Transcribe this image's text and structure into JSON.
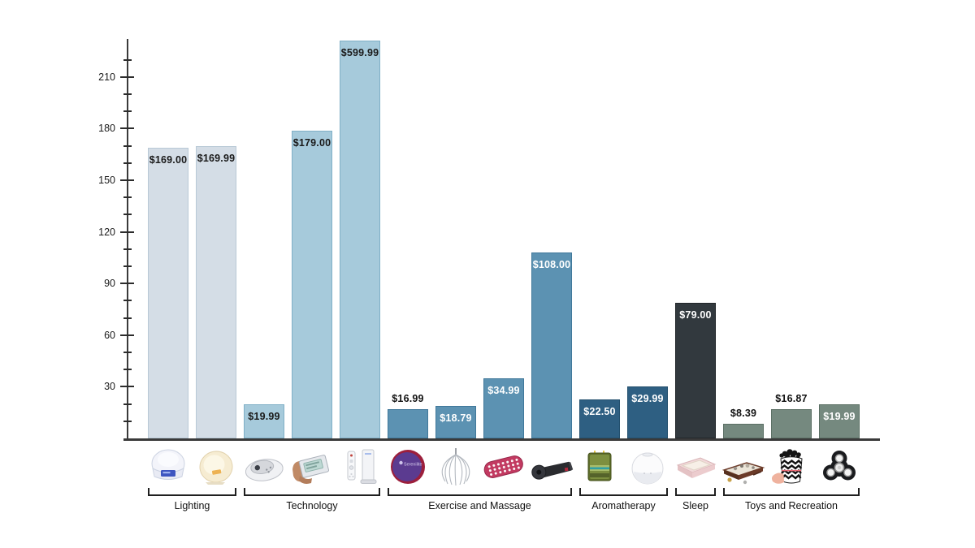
{
  "chart_data": {
    "type": "bar",
    "title": "",
    "xlabel": "",
    "ylabel": "",
    "ylim": [
      0,
      232
    ],
    "grid": false,
    "legend": "none",
    "yticks_major": [
      30,
      60,
      90,
      120,
      150,
      180,
      210
    ],
    "ytick_minor_step": 10,
    "note": "Tallest bar ($599.99) is clipped at the top of the plot area",
    "groups": [
      {
        "label": "Lighting",
        "bar_color": "#d4dde6",
        "bar_edge_color": "#b9c9d6",
        "bars": [
          {
            "value": 169.0,
            "label": "$169.00",
            "label_position": "inside",
            "label_color": "#1a1a1a",
            "icon": "wake-up-light"
          },
          {
            "value": 169.99,
            "label": "$169.99",
            "label_position": "inside",
            "label_color": "#1a1a1a",
            "icon": "sunrise-lamp"
          }
        ]
      },
      {
        "label": "Technology",
        "bar_color": "#a6cadb",
        "bar_edge_color": "#7fafc6",
        "bars": [
          {
            "value": 19.99,
            "label": "$19.99",
            "label_position": "inside",
            "label_color": "#1a1a1a",
            "icon": "sound-machine"
          },
          {
            "value": 179.0,
            "label": "$179.00",
            "label_position": "inside",
            "label_color": "#1a1a1a",
            "icon": "light-therapy-device"
          },
          {
            "value": 599.99,
            "label": "$599.99",
            "label_position": "inside",
            "label_color": "#1a1a1a",
            "icon": "game-console",
            "clipped": true
          }
        ]
      },
      {
        "label": "Exercise and Massage",
        "bar_color": "#5c92b2",
        "bar_edge_color": "#40789a",
        "bars": [
          {
            "value": 16.99,
            "label": "$16.99",
            "label_position": "above",
            "label_color": "#111111",
            "icon": "stress-ball",
            "icon_text": "Serenilite"
          },
          {
            "value": 18.79,
            "label": "$18.79",
            "label_position": "inside",
            "label_color": "#ffffff",
            "icon": "head-massager"
          },
          {
            "value": 34.99,
            "label": "$34.99",
            "label_position": "inside",
            "label_color": "#ffffff",
            "icon": "acupressure-roller"
          },
          {
            "value": 108.0,
            "label": "$108.00",
            "label_position": "inside",
            "label_color": "#ffffff",
            "icon": "yoga-mat"
          }
        ]
      },
      {
        "label": "Aromatherapy",
        "bar_color": "#2e5f82",
        "bar_edge_color": "#234f6d",
        "bars": [
          {
            "value": 22.5,
            "label": "$22.50",
            "label_position": "inside",
            "label_color": "#ffffff",
            "icon": "stress-relief-candle"
          },
          {
            "value": 29.99,
            "label": "$29.99",
            "label_position": "inside",
            "label_color": "#ffffff",
            "icon": "aroma-diffuser"
          }
        ]
      },
      {
        "label": "Sleep",
        "bar_color": "#32393e",
        "bar_edge_color": "#212629",
        "bars": [
          {
            "value": 79.0,
            "label": "$79.00",
            "label_position": "inside",
            "label_color": "#ffffff",
            "icon": "sleep-journal"
          }
        ]
      },
      {
        "label": "Toys and Recreation",
        "bar_color": "#75897f",
        "bar_edge_color": "#5c7065",
        "bars": [
          {
            "value": 8.39,
            "label": "$8.39",
            "label_position": "above",
            "label_color": "#111111",
            "icon": "zen-garden-kit"
          },
          {
            "value": 16.87,
            "label": "$16.87",
            "label_position": "above",
            "label_color": "#111111",
            "icon": "chevron-basket"
          },
          {
            "value": 19.99,
            "label": "$19.99",
            "label_position": "inside",
            "label_color": "#ffffff",
            "icon": "fidget-spinner"
          }
        ]
      }
    ]
  }
}
